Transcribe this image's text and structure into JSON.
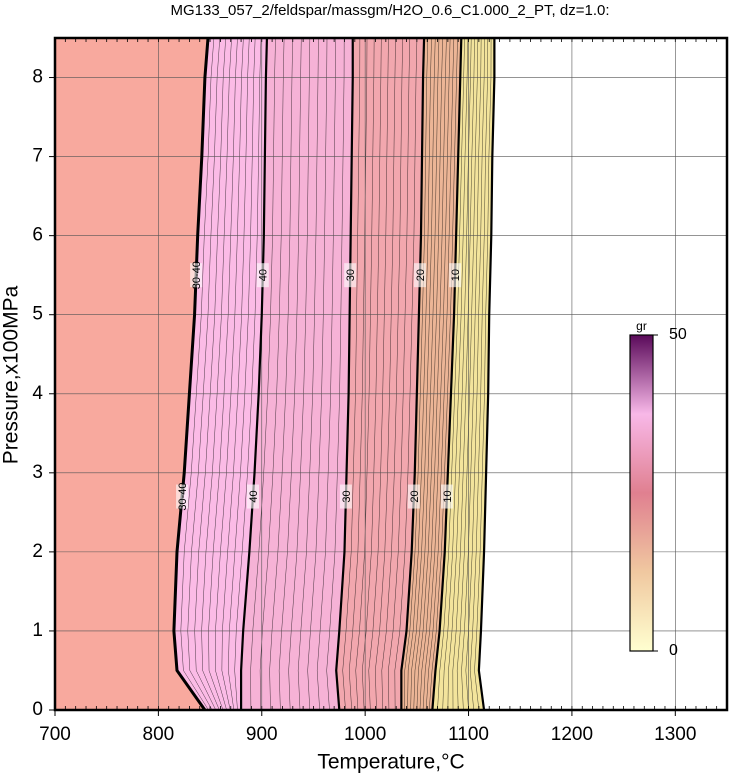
{
  "chart_data": {
    "type": "contour",
    "title": "MG133_057_2/feldspar/massgm/H2O_0.6_C1.000_2_PT, dz=1.0:",
    "x_label": "Temperature,°C",
    "y_label": "Pressure,x100MPa",
    "xlim": [
      700,
      1350
    ],
    "ylim": [
      0,
      8.5
    ],
    "xticks": [
      700,
      800,
      900,
      1000,
      1100,
      1200,
      1300
    ],
    "yticks": [
      0,
      1,
      2,
      3,
      4,
      5,
      6,
      7,
      8
    ],
    "grid": true,
    "background_color": "#f8a99e",
    "y": [
      0,
      0.5,
      1,
      2,
      3,
      4,
      5,
      6,
      7,
      8,
      8.5
    ],
    "series": [
      {
        "name": "30-40",
        "color": "#fbbbe6",
        "x": [
          845,
          818,
          815,
          818,
          825,
          830,
          835,
          838,
          842,
          845,
          848
        ]
      },
      {
        "name": "40",
        "color": "#f6b2d6",
        "x": [
          880,
          880,
          882,
          888,
          893,
          897,
          900,
          902,
          903,
          904,
          905
        ]
      },
      {
        "name": "30",
        "color": "#f2a7ae",
        "x": [
          975,
          972,
          975,
          980,
          982,
          984,
          985,
          986,
          987,
          988,
          988
        ]
      },
      {
        "name": "20",
        "color": "#ecb596",
        "x": [
          1035,
          1035,
          1040,
          1045,
          1048,
          1050,
          1052,
          1054,
          1055,
          1056,
          1057
        ]
      },
      {
        "name": "10",
        "color": "#f3e49c",
        "x": [
          1065,
          1068,
          1072,
          1077,
          1080,
          1083,
          1086,
          1088,
          1090,
          1092,
          1093
        ]
      },
      {
        "name": null,
        "color": "#ffffff",
        "x": [
          1115,
          1110,
          1112,
          1115,
          1117,
          1119,
          1120,
          1122,
          1123,
          1125,
          1125
        ]
      }
    ],
    "colorbar": {
      "label": "gr",
      "ticks": [
        0,
        50
      ],
      "colors": [
        "#ffffd0",
        "#f0c8a0",
        "#e08090",
        "#f8b8e8",
        "#5a0a5a"
      ]
    }
  }
}
